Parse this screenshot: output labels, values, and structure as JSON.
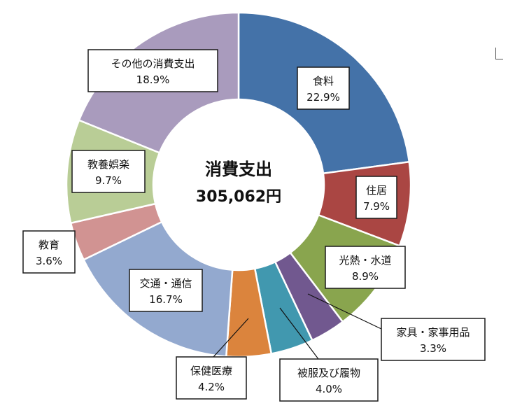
{
  "chart_data": {
    "type": "pie",
    "donut": true,
    "center_title": "消費支出",
    "center_total": "305,062円",
    "slices": [
      {
        "name": "食料",
        "value": 22.9,
        "label": "22.9%",
        "color": "#4472A8"
      },
      {
        "name": "住居",
        "value": 7.9,
        "label": "7.9%",
        "color": "#AA4643"
      },
      {
        "name": "光熱・水道",
        "value": 8.9,
        "label": "8.9%",
        "color": "#89A54E"
      },
      {
        "name": "家具・家事用品",
        "value": 3.3,
        "label": "3.3%",
        "color": "#71588F"
      },
      {
        "name": "被服及び履物",
        "value": 4.0,
        "label": "4.0%",
        "color": "#4198AF"
      },
      {
        "name": "保健医療",
        "value": 4.2,
        "label": "4.2%",
        "color": "#DB843D"
      },
      {
        "name": "交通・通信",
        "value": 16.7,
        "label": "16.7%",
        "color": "#93A9CF"
      },
      {
        "name": "教育",
        "value": 3.6,
        "label": "3.6%",
        "color": "#D19392"
      },
      {
        "name": "教養娯楽",
        "value": 9.7,
        "label": "9.7%",
        "color": "#B9CD96"
      },
      {
        "name": "その他の消費支出",
        "value": 18.9,
        "label": "18.9%",
        "color": "#A99BBD"
      }
    ]
  }
}
